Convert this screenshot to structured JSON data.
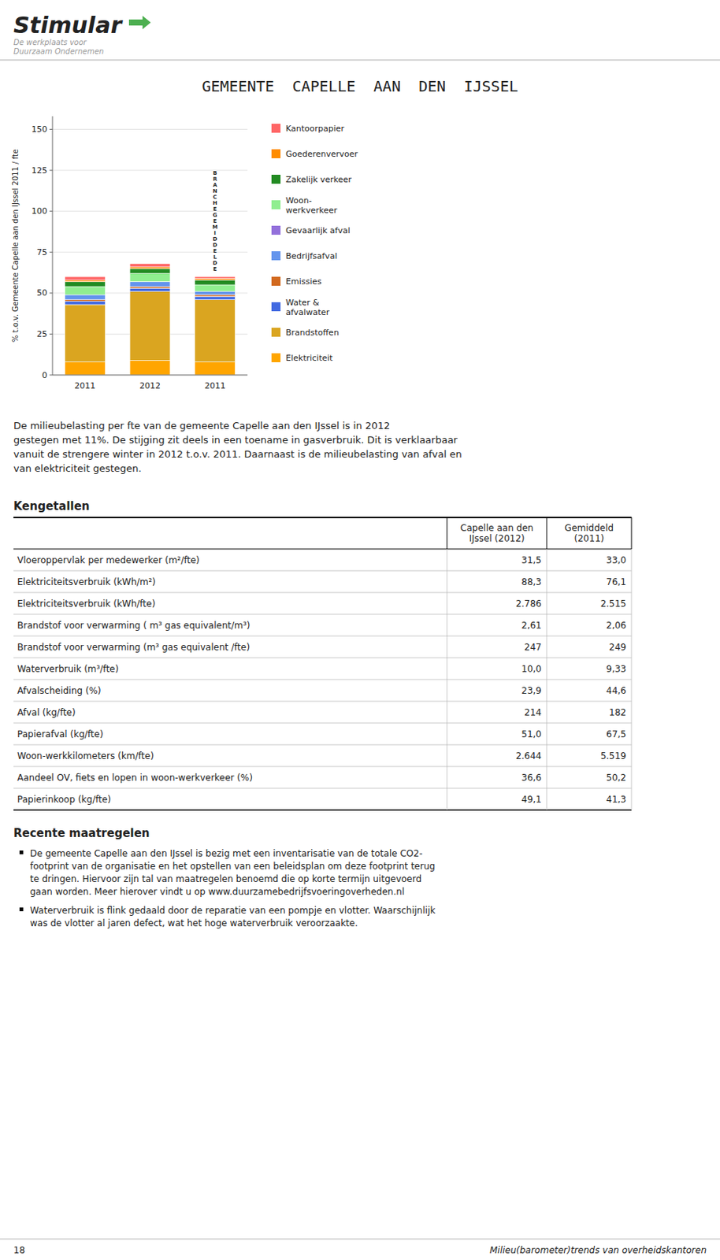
{
  "chart_data": {
    "type": "bar",
    "stacked": true,
    "title": "GEMEENTE  CAPELLE  AAN  DEN  IJSSEL",
    "ylabel": "% t.o.v. Gemeente Capelle aan den IJssel 2011 / fte",
    "categories": [
      "2011",
      "2012",
      "2011"
    ],
    "series": [
      {
        "name": "Elektriciteit",
        "color": "#FFA500",
        "values": [
          8,
          9,
          8
        ]
      },
      {
        "name": "Brandstoffen",
        "color": "#DAA520",
        "values": [
          35,
          42,
          38
        ]
      },
      {
        "name": "Water &\nafvalwater",
        "color": "#4169E1",
        "values": [
          2,
          2,
          2
        ]
      },
      {
        "name": "Emissies",
        "color": "#D2691E",
        "values": [
          1,
          1,
          1
        ]
      },
      {
        "name": "Bedrijfsafval",
        "color": "#6495ED",
        "values": [
          3,
          3,
          2
        ]
      },
      {
        "name": "Gevaarlijk afval",
        "color": "#9370DB",
        "values": [
          0,
          0,
          0
        ]
      },
      {
        "name": "Woon-\nwerkverkeer",
        "color": "#90EE90",
        "values": [
          5,
          5,
          4
        ]
      },
      {
        "name": "Zakelijk verkeer",
        "color": "#228B22",
        "values": [
          3,
          3,
          3
        ]
      },
      {
        "name": "Goederenvervoer",
        "color": "#FF8C00",
        "values": [
          1,
          1,
          1
        ]
      },
      {
        "name": "Kantoorpapier",
        "color": "#FF6666",
        "values": [
          2,
          2,
          1
        ]
      }
    ],
    "ylim": [
      0,
      158
    ],
    "yticks": [
      0,
      25,
      50,
      75,
      100,
      125,
      150
    ],
    "grid": true,
    "legend": "right",
    "annotations": [
      {
        "text": "B\nR\nA\nN\nC\nH\nE\nG\nE\nM\nI\nD\nD\nE\nL\nD\nE"
      }
    ]
  },
  "page": {
    "logo_text": "Stimular",
    "logo_subtitle": [
      "De werkplaats voor",
      "Duurzaam Ondernemen"
    ],
    "paragraph": "De milieubelasting per fte van de gemeente Capelle aan den IJssel is in 2012\ngestegen met 11%. De stijging zit deels in een toename in gasverbruik. Dit is verklaarbaar\nvanuit de strengere winter in 2012 t.o.v. 2011. Daarnaast is de milieubelasting van afval en\nvan elektriciteit gestegen.",
    "kengetallen_title": "Kengetallen",
    "table": {
      "headers": [
        "Capelle aan den\nIJssel (2012)",
        "Gemiddeld\n(2011)"
      ],
      "rows": [
        {
          "label": "Vloeroppervlak per medewerker (m²/fte)",
          "values": [
            "31,5",
            "33,0"
          ]
        },
        {
          "label": "Elektriciteitsverbruik (kWh/m²)",
          "values": [
            "88,3",
            "76,1"
          ]
        },
        {
          "label": "Elektriciteitsverbruik (kWh/fte)",
          "values": [
            "2.786",
            "2.515"
          ]
        },
        {
          "label": "Brandstof voor verwarming ( m³ gas equivalent/m³)",
          "values": [
            "2,61",
            "2,06"
          ]
        },
        {
          "label": "Brandstof voor verwarming (m³ gas equivalent /fte)",
          "values": [
            "247",
            "249"
          ]
        },
        {
          "label": "Waterverbruik (m³/fte)",
          "values": [
            "10,0",
            "9,33"
          ]
        },
        {
          "label": "Afvalscheiding (%)",
          "values": [
            "23,9",
            "44,6"
          ]
        },
        {
          "label": "Afval (kg/fte)",
          "values": [
            "214",
            "182"
          ]
        },
        {
          "label": "Papierafval (kg/fte)",
          "values": [
            "51,0",
            "67,5"
          ]
        },
        {
          "label": "Woon-werkkilometers (km/fte)",
          "values": [
            "2.644",
            "5.519"
          ]
        },
        {
          "label": "Aandeel OV, fiets en lopen in woon-werkverkeer (%)",
          "values": [
            "36,6",
            "50,2"
          ]
        },
        {
          "label": "Papierinkoop (kg/fte)",
          "values": [
            "49,1",
            "41,3"
          ]
        }
      ]
    },
    "recente_title": "Recente maatregelen",
    "recente_bullets": [
      "De gemeente Capelle aan den IJssel is bezig met een inventarisatie van de totale CO2-\nfootprint van de organisatie en het opstellen van een beleidsplan om deze footprint terug\nte dringen. Hiervoor zijn tal van maatregelen benoemd die op korte termijn uitgevoerd\ngaan worden. Meer hierover vindt u op www.duurzamebedrijfsvoeringoverheden.nl",
      "Waterverbruik is flink gedaald door de reparatie van een pompje en vlotter. Waarschijnlijk\nwas de vlotter al jaren defect, wat het hoge waterverbruik veroorzaakte."
    ],
    "footer_left": "18",
    "footer_right": "Milieu(barometer)trends van overheidskantoren"
  }
}
